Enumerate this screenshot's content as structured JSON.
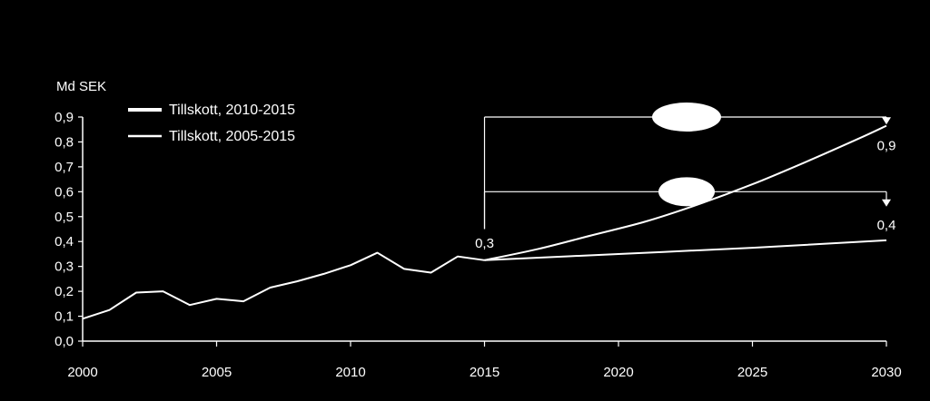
{
  "chart_data": {
    "type": "line",
    "title": "",
    "ylabel": "Md SEK",
    "xlabel": "",
    "xlim": [
      2000,
      2030
    ],
    "ylim": [
      0,
      0.9
    ],
    "x_ticks": [
      "2000",
      "2005",
      "2010",
      "2015",
      "2020",
      "2025",
      "2030"
    ],
    "x_tick_values": [
      2000,
      2005,
      2010,
      2015,
      2020,
      2025,
      2030
    ],
    "y_ticks": [
      "0,0",
      "0,1",
      "0,2",
      "0,3",
      "0,4",
      "0,5",
      "0,6",
      "0,7",
      "0,8",
      "0,9"
    ],
    "y_tick_values": [
      0,
      0.1,
      0.2,
      0.3,
      0.4,
      0.5,
      0.6,
      0.7,
      0.8,
      0.9
    ],
    "grid": false,
    "legend_position": "top-left",
    "historical": {
      "x": [
        2000,
        2001,
        2002,
        2003,
        2004,
        2005,
        2006,
        2007,
        2008,
        2009,
        2010,
        2011,
        2012,
        2013,
        2014,
        2015
      ],
      "values": [
        0.09,
        0.125,
        0.195,
        0.2,
        0.145,
        0.17,
        0.16,
        0.215,
        0.24,
        0.27,
        0.305,
        0.355,
        0.29,
        0.275,
        0.34,
        0.325
      ]
    },
    "series": [
      {
        "name": "Tillskott, 2010-2015",
        "x": [
          2015,
          2017,
          2019,
          2021,
          2023,
          2025,
          2027,
          2029,
          2030
        ],
        "values": [
          0.325,
          0.37,
          0.425,
          0.48,
          0.55,
          0.63,
          0.72,
          0.815,
          0.865
        ]
      },
      {
        "name": "Tillskott, 2005-2015",
        "x": [
          2015,
          2020,
          2025,
          2030
        ],
        "values": [
          0.325,
          0.35,
          0.375,
          0.405
        ]
      }
    ],
    "annotations": [
      {
        "text": "0,3",
        "x": 2015,
        "y": 0.325
      },
      {
        "text": "0,9",
        "x": 2030,
        "y": 0.865
      },
      {
        "text": "0,4",
        "x": 2030,
        "y": 0.405
      }
    ],
    "brackets": [
      {
        "from_x": 2015,
        "to_x": 2030,
        "level_y": 0.9,
        "stem_from_y": 0.45,
        "arrow_to_y": 0.87
      },
      {
        "from_x": 2015,
        "to_x": 2030,
        "level_y": 0.6,
        "stem_from_y": 0.45,
        "arrow_to_y": 0.54
      }
    ],
    "colors": {
      "background": "#000000",
      "foreground": "#ffffff"
    }
  }
}
